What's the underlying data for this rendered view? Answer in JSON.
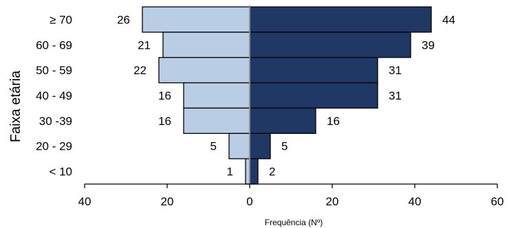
{
  "chart_data": {
    "type": "bar",
    "orientation": "horizontal-butterfly",
    "categories": [
      "≥ 70",
      "60 - 69",
      "50 - 59",
      "40 - 49",
      "30 -39",
      "20 - 29",
      "< 10"
    ],
    "series": [
      {
        "side": "left",
        "values": [
          26,
          21,
          22,
          16,
          16,
          5,
          1
        ],
        "color": "#b9cde5"
      },
      {
        "side": "right",
        "values": [
          44,
          39,
          31,
          31,
          16,
          5,
          2
        ],
        "color": "#1f3864"
      }
    ],
    "xlabel": "Frequência (Nº)",
    "ylabel": "Faixa etária",
    "xlim": [
      -40,
      60
    ],
    "x_ticks": [
      -40,
      -20,
      0,
      20,
      40,
      60
    ],
    "x_tick_labels": [
      "40",
      "20",
      "0",
      "20",
      "40",
      "60"
    ],
    "grid": false,
    "legend": "none"
  }
}
